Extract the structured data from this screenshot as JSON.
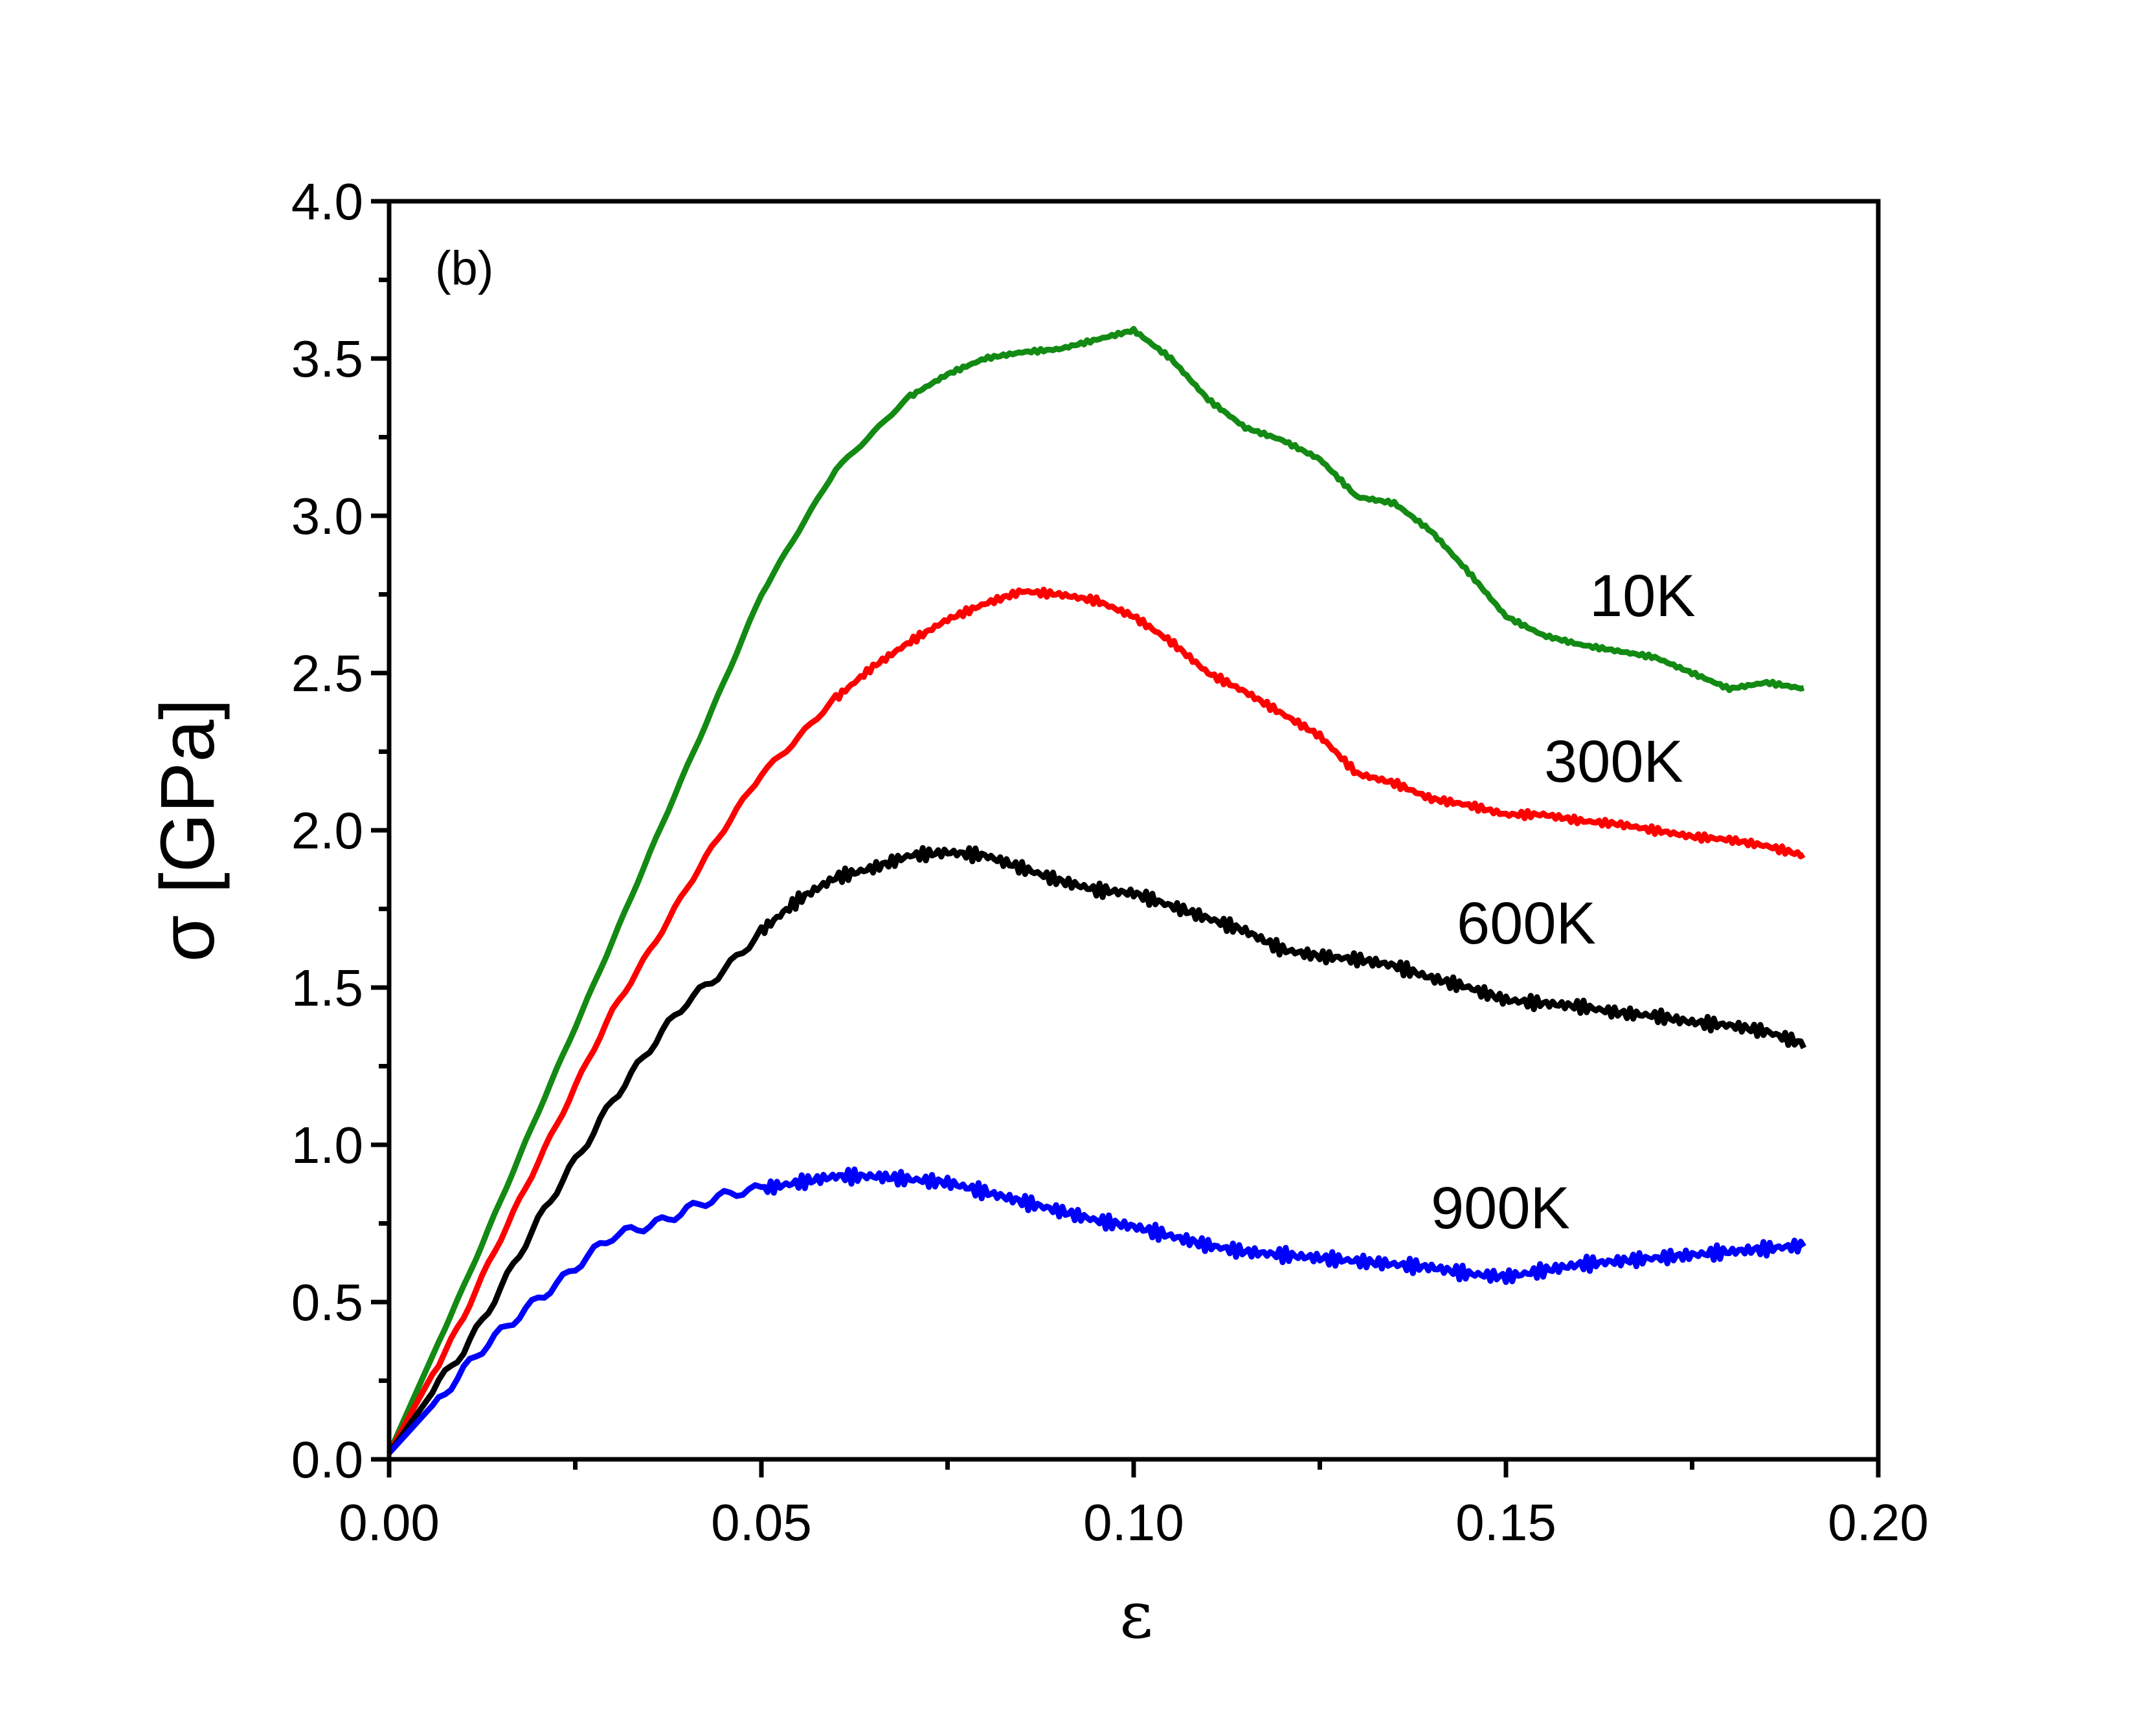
{
  "chart_data": {
    "type": "line",
    "panel_label": "(b)",
    "xlabel": "ε",
    "ylabel": "σ [GPa]",
    "xlim": [
      0.0,
      0.2
    ],
    "ylim": [
      0.0,
      4.0
    ],
    "xticks": [
      "0.00",
      "0.05",
      "0.10",
      "0.15",
      "0.20"
    ],
    "yticks": [
      "0.0",
      "0.5",
      "1.0",
      "1.5",
      "2.0",
      "2.5",
      "3.0",
      "3.5",
      "4.0"
    ],
    "grid": false,
    "series": [
      {
        "name": "10K",
        "color": "#138a13",
        "x": [
          0.0,
          0.01,
          0.02,
          0.03,
          0.04,
          0.05,
          0.06,
          0.07,
          0.075,
          0.08,
          0.085,
          0.09,
          0.095,
          0.1,
          0.105,
          0.11,
          0.115,
          0.12,
          0.125,
          0.13,
          0.135,
          0.14,
          0.145,
          0.15,
          0.155,
          0.16,
          0.165,
          0.17,
          0.175,
          0.18,
          0.185,
          0.19
        ],
        "y": [
          0.02,
          0.55,
          1.1,
          1.65,
          2.2,
          2.75,
          3.15,
          3.38,
          3.45,
          3.5,
          3.52,
          3.53,
          3.56,
          3.59,
          3.5,
          3.37,
          3.28,
          3.24,
          3.18,
          3.06,
          3.04,
          2.95,
          2.82,
          2.68,
          2.62,
          2.59,
          2.57,
          2.55,
          2.5,
          2.45,
          2.47,
          2.45
        ]
      },
      {
        "name": "300K",
        "color": "#ff0000",
        "x": [
          0.0,
          0.01,
          0.02,
          0.03,
          0.04,
          0.05,
          0.06,
          0.065,
          0.07,
          0.075,
          0.08,
          0.085,
          0.09,
          0.095,
          0.1,
          0.105,
          0.11,
          0.115,
          0.12,
          0.125,
          0.13,
          0.135,
          0.14,
          0.145,
          0.15,
          0.155,
          0.16,
          0.165,
          0.17,
          0.175,
          0.18,
          0.185,
          0.19
        ],
        "y": [
          0.02,
          0.45,
          0.95,
          1.42,
          1.82,
          2.18,
          2.42,
          2.52,
          2.6,
          2.67,
          2.72,
          2.76,
          2.75,
          2.73,
          2.68,
          2.6,
          2.5,
          2.44,
          2.37,
          2.3,
          2.18,
          2.15,
          2.1,
          2.08,
          2.05,
          2.05,
          2.03,
          2.02,
          2.0,
          1.98,
          1.97,
          1.95,
          1.92
        ]
      },
      {
        "name": "600K",
        "color": "#000000",
        "x": [
          0.0,
          0.01,
          0.02,
          0.03,
          0.04,
          0.05,
          0.055,
          0.06,
          0.065,
          0.07,
          0.075,
          0.08,
          0.085,
          0.09,
          0.095,
          0.1,
          0.105,
          0.11,
          0.115,
          0.12,
          0.125,
          0.13,
          0.135,
          0.14,
          0.145,
          0.15,
          0.155,
          0.16,
          0.165,
          0.17,
          0.175,
          0.18,
          0.185,
          0.19
        ],
        "y": [
          0.02,
          0.35,
          0.75,
          1.15,
          1.45,
          1.68,
          1.78,
          1.85,
          1.88,
          1.92,
          1.93,
          1.92,
          1.88,
          1.84,
          1.81,
          1.8,
          1.76,
          1.72,
          1.68,
          1.62,
          1.6,
          1.59,
          1.57,
          1.53,
          1.5,
          1.46,
          1.45,
          1.44,
          1.42,
          1.41,
          1.39,
          1.38,
          1.36,
          1.32
        ]
      },
      {
        "name": "900K",
        "color": "#0000ff",
        "x": [
          0.0,
          0.01,
          0.02,
          0.03,
          0.04,
          0.05,
          0.055,
          0.06,
          0.065,
          0.07,
          0.075,
          0.08,
          0.085,
          0.09,
          0.095,
          0.1,
          0.105,
          0.11,
          0.115,
          0.12,
          0.125,
          0.13,
          0.135,
          0.14,
          0.145,
          0.15,
          0.155,
          0.16,
          0.165,
          0.17,
          0.175,
          0.18,
          0.185,
          0.19
        ],
        "y": [
          0.02,
          0.28,
          0.52,
          0.7,
          0.8,
          0.86,
          0.88,
          0.9,
          0.9,
          0.89,
          0.88,
          0.85,
          0.82,
          0.79,
          0.76,
          0.74,
          0.71,
          0.68,
          0.66,
          0.65,
          0.64,
          0.63,
          0.62,
          0.61,
          0.59,
          0.58,
          0.6,
          0.62,
          0.63,
          0.64,
          0.65,
          0.66,
          0.67,
          0.68
        ]
      }
    ]
  }
}
